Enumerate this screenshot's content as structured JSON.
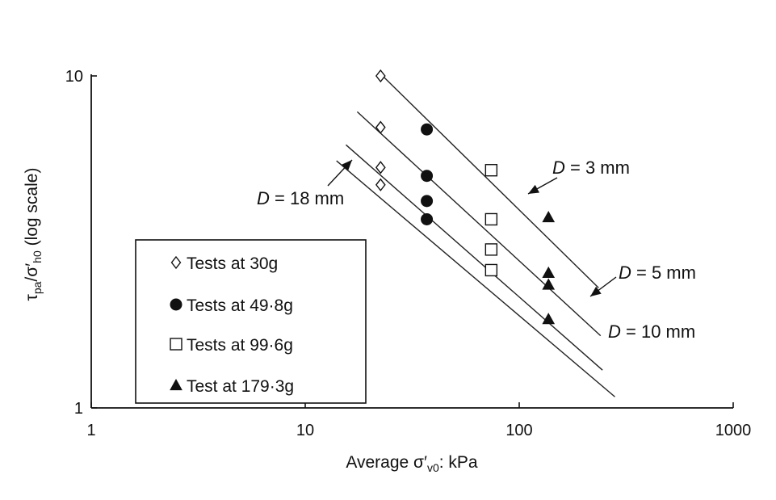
{
  "chart_data": {
    "type": "scatter",
    "title": "",
    "xlabel": {
      "prefix": "Average σ′",
      "sub": "v0",
      "suffix": ": kPa"
    },
    "ylabel": {
      "t": "τ",
      "t_sub": "pa",
      "mid": "/σ′",
      "s_sub": "h0",
      "suffix": " (log scale)"
    },
    "xscale": "log",
    "yscale": "log",
    "xlim": [
      1,
      1000
    ],
    "ylim": [
      1,
      10
    ],
    "x_ticks": [
      1,
      10,
      100,
      1000
    ],
    "x_tick_labels": [
      "1",
      "10",
      "100",
      "1000"
    ],
    "y_ticks": [
      1,
      10
    ],
    "y_tick_labels": [
      "1",
      "10"
    ],
    "grid": false,
    "legend_position": "lower-left",
    "series": [
      {
        "name": "Tests at 30g",
        "marker": "open-diamond",
        "points": [
          [
            22.5,
            10.0
          ],
          [
            22.5,
            7.0
          ],
          [
            22.5,
            5.3
          ],
          [
            22.5,
            4.7
          ]
        ]
      },
      {
        "name": "Tests at 49·8g",
        "marker": "filled-circle",
        "points": [
          [
            37,
            6.9
          ],
          [
            37,
            5.0
          ],
          [
            37,
            4.2
          ],
          [
            37,
            3.7
          ]
        ]
      },
      {
        "name": "Tests at 99·6g",
        "marker": "open-square",
        "points": [
          [
            74,
            5.2
          ],
          [
            74,
            3.7
          ],
          [
            74,
            3.0
          ],
          [
            74,
            2.6
          ]
        ]
      },
      {
        "name": "Test at 179·3g",
        "marker": "filled-triangle",
        "points": [
          [
            137,
            3.75
          ],
          [
            137,
            2.55
          ],
          [
            137,
            2.35
          ],
          [
            137,
            1.85
          ]
        ]
      }
    ],
    "trend_lines": [
      {
        "label": "3 mm",
        "from": [
          23,
          10.0
        ],
        "to": [
          235,
          2.3
        ]
      },
      {
        "label": "5 mm",
        "from": [
          17.5,
          7.8
        ],
        "to": [
          240,
          1.65
        ]
      },
      {
        "label": "10 mm",
        "from": [
          15.5,
          6.2
        ],
        "to": [
          245,
          1.3
        ]
      },
      {
        "label": "18 mm",
        "from": [
          14,
          5.55
        ],
        "to": [
          280,
          1.08
        ]
      }
    ],
    "annotations": [
      {
        "var": "D",
        "text": " = 3 mm"
      },
      {
        "var": "D",
        "text": " = 5 mm"
      },
      {
        "var": "D",
        "text": " = 10 mm"
      },
      {
        "var": "D",
        "text": " = 18 mm"
      }
    ]
  }
}
